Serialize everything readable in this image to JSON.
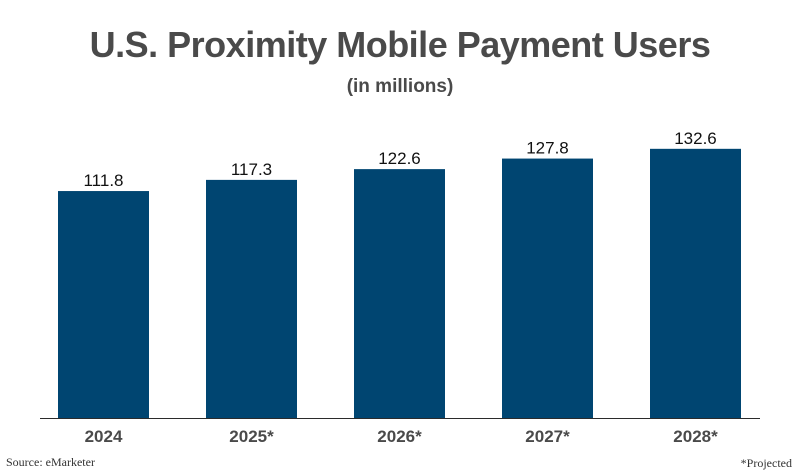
{
  "title": "U.S. Proximity Mobile Payment Users",
  "subtitle": "(in millions)",
  "source": "Source: eMarketer",
  "note": "*Projected",
  "colors": {
    "bar": "#004571",
    "text": "#4a4a4a",
    "label": "#111111",
    "axis": "#2b2b2b"
  },
  "chart_data": {
    "type": "bar",
    "categories": [
      "2024",
      "2025*",
      "2026*",
      "2027*",
      "2028*"
    ],
    "values": [
      111.8,
      117.3,
      122.6,
      127.8,
      132.6
    ],
    "title": "U.S. Proximity Mobile Payment Users",
    "subtitle": "(in millions)",
    "xlabel": "",
    "ylabel": "",
    "ylim": [
      0,
      150
    ],
    "grid": false,
    "legend": "none"
  }
}
